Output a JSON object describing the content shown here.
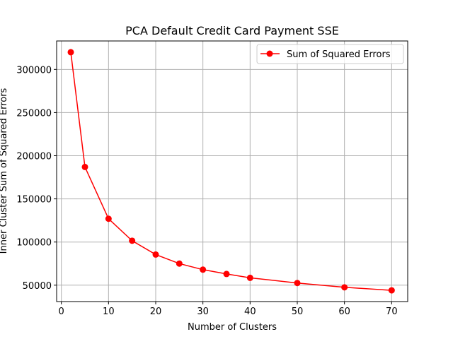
{
  "chart_data": {
    "type": "line",
    "title": "PCA Default Credit Card Payment SSE",
    "xlabel": "Number of Clusters",
    "ylabel": "Inner Cluster Sum of Squared Errors",
    "xlim": [
      -1,
      73.4
    ],
    "ylim": [
      31000,
      333000
    ],
    "xticks": [
      0,
      10,
      20,
      30,
      40,
      50,
      60,
      70
    ],
    "yticks": [
      50000,
      100000,
      150000,
      200000,
      250000,
      300000
    ],
    "grid": true,
    "legend_position": "top-right",
    "series": [
      {
        "name": "Sum of Squared Errors",
        "color": "#ff0000",
        "marker": "circle",
        "x": [
          2,
          5,
          10,
          15,
          20,
          25,
          30,
          35,
          40,
          50,
          60,
          70
        ],
        "y": [
          320000,
          187000,
          127000,
          101500,
          85500,
          75000,
          68000,
          63000,
          58500,
          52500,
          47500,
          44000
        ]
      }
    ]
  }
}
